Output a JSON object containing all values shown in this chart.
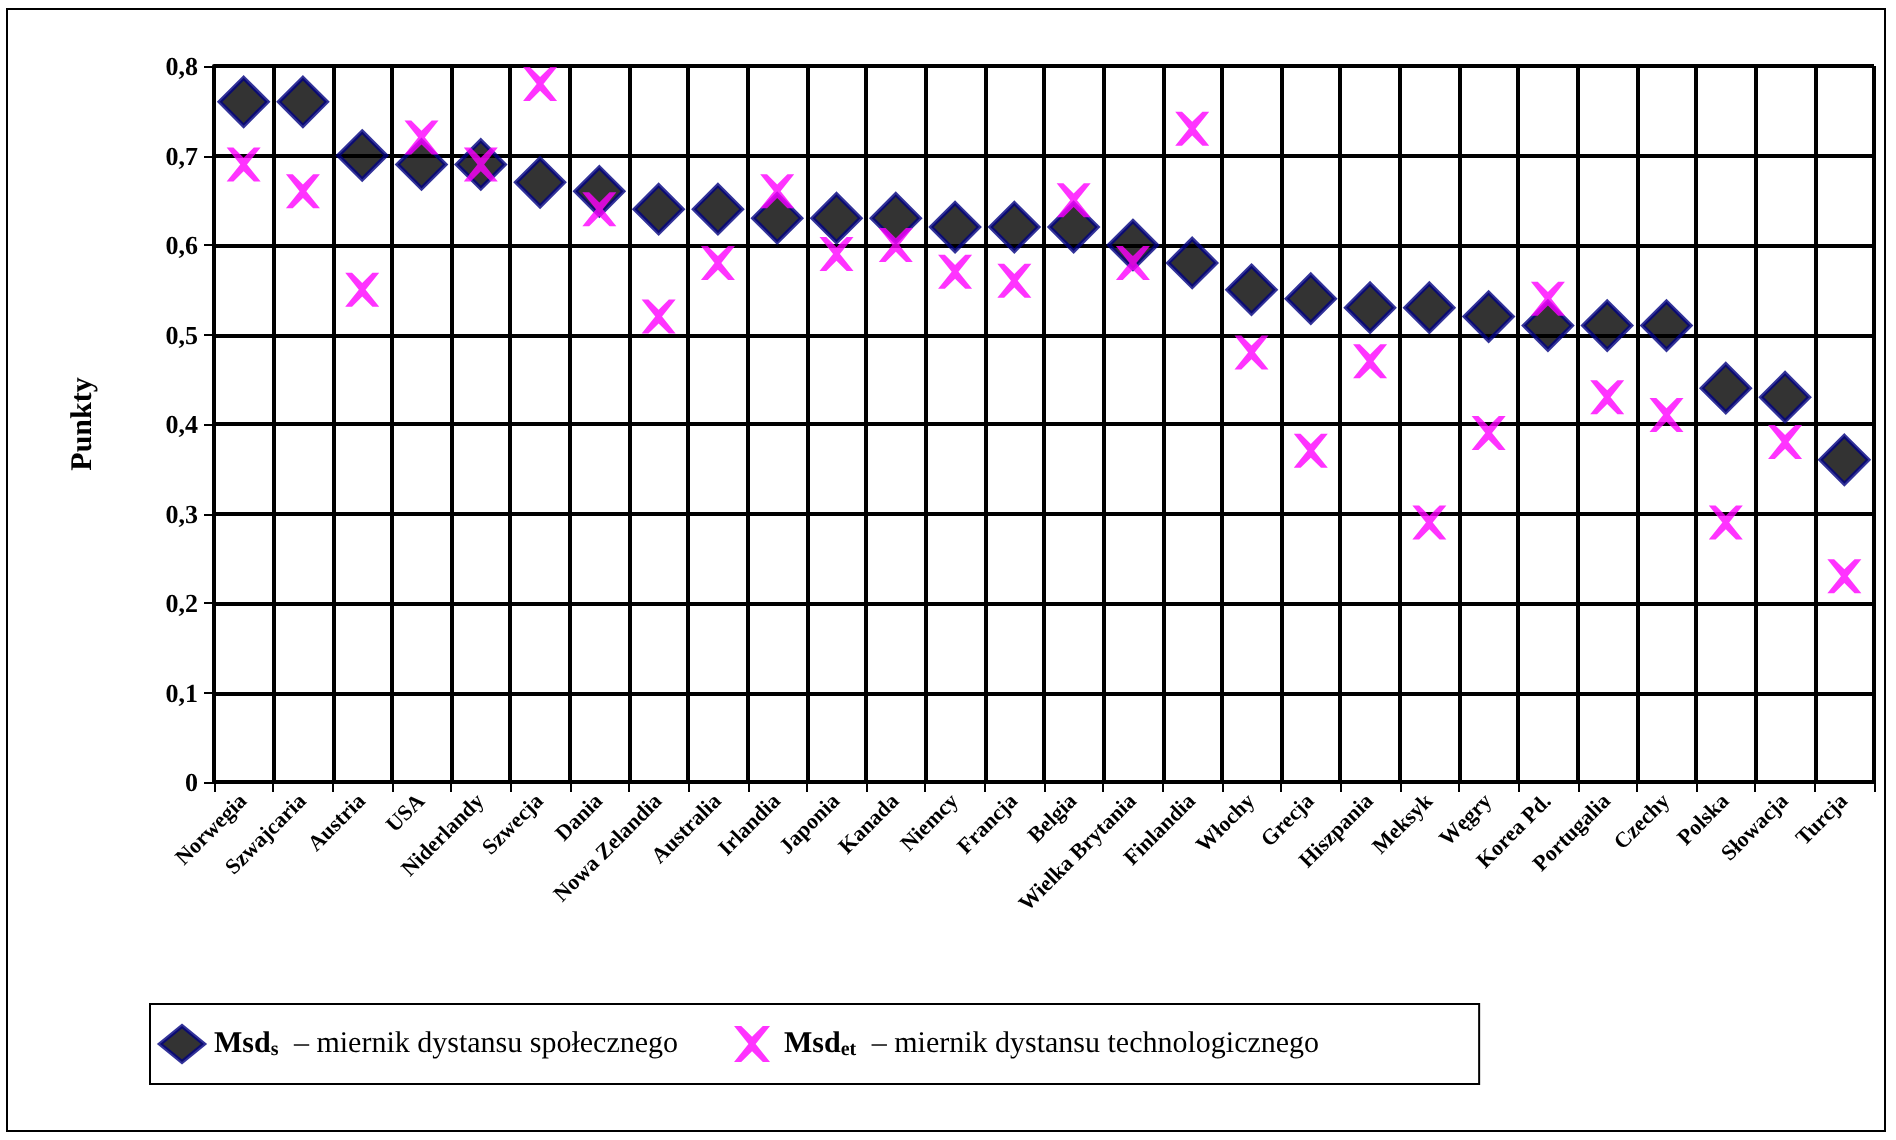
{
  "chart_data": {
    "type": "scatter",
    "ylabel": "Punkty",
    "categories": [
      "Norwegia",
      "Szwajcaria",
      "Austria",
      "USA",
      "Niderlandy",
      "Szwecja",
      "Dania",
      "Nowa Zelandia",
      "Australia",
      "Irlandia",
      "Japonia",
      "Kanada",
      "Niemcy",
      "Francja",
      "Belgia",
      "Wielka Brytania",
      "Finlandia",
      "Włochy",
      "Grecja",
      "Hiszpania",
      "Meksyk",
      "Węgry",
      "Korea Pd.",
      "Portugalia",
      "Czechy",
      "Polska",
      "Słowacja",
      "Turcja"
    ],
    "series": [
      {
        "name": "Msd$_{s}$ – miernik dystansu społecznego",
        "color": "#000000",
        "marker": "diamond",
        "values": [
          0.76,
          0.76,
          0.7,
          0.69,
          0.69,
          0.67,
          0.66,
          0.64,
          0.64,
          0.63,
          0.63,
          0.63,
          0.62,
          0.62,
          0.62,
          0.6,
          0.58,
          0.55,
          0.54,
          0.53,
          0.53,
          0.52,
          0.51,
          0.51,
          0.51,
          0.44,
          0.43,
          0.36
        ]
      },
      {
        "name": "Msd$_{et}$ – miernik dystansu technologicznego",
        "color": "#ff00ff",
        "marker": "cross",
        "values": [
          0.69,
          0.66,
          0.55,
          0.72,
          0.69,
          0.78,
          0.64,
          0.52,
          0.58,
          0.66,
          0.59,
          0.6,
          0.57,
          0.56,
          0.65,
          0.58,
          0.73,
          0.48,
          0.37,
          0.47,
          0.29,
          0.39,
          0.54,
          0.43,
          0.41,
          0.29,
          0.38,
          0.23
        ]
      }
    ],
    "ylim": [
      0,
      0.8
    ],
    "yticks": [
      0,
      {
        "value": 0.1,
        "label": "0,1"
      },
      {
        "value": 0.2,
        "label": "0,2"
      },
      {
        "value": 0.3,
        "label": "0,3"
      },
      {
        "value": 0.4,
        "label": "0,4"
      },
      {
        "value": 0.5,
        "label": "0,5"
      },
      {
        "value": 0.6,
        "label": "0,6"
      },
      {
        "value": 0.7,
        "label": "0,7"
      },
      {
        "value": 0.8,
        "label": "0,8"
      }
    ],
    "grid": true,
    "legend": "bottom"
  }
}
